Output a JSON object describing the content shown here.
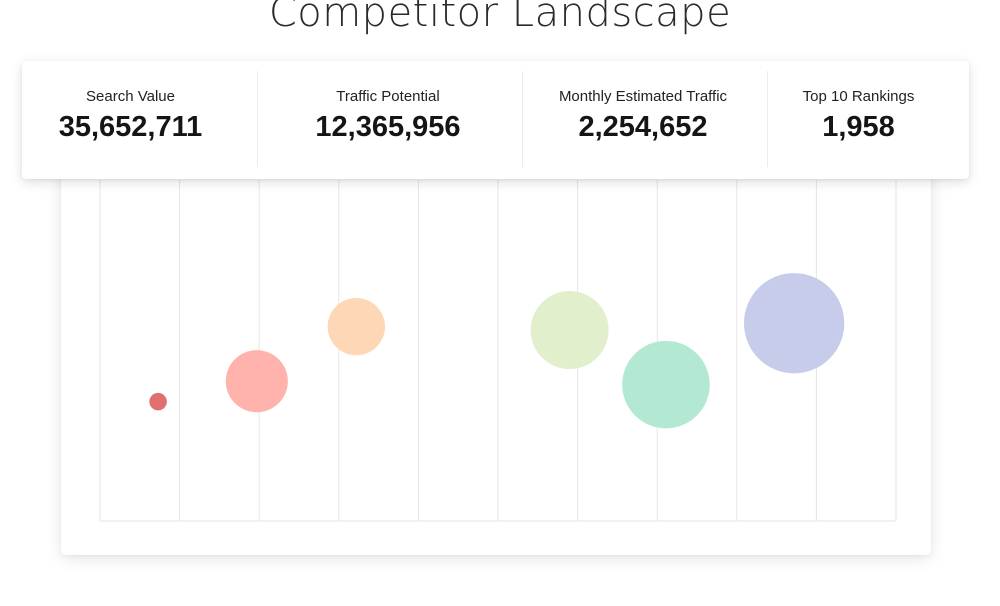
{
  "page": {
    "title": "Competitor Landscape"
  },
  "stats": [
    {
      "label": "Search Value",
      "value": "35,652,711"
    },
    {
      "label": "Traffic Potential",
      "value": "12,365,956"
    },
    {
      "label": "Monthly Estimated Traffic",
      "value": "2,254,652"
    },
    {
      "label": "Top 10 Rankings",
      "value": "1,958"
    }
  ],
  "chart_data": {
    "type": "scatter",
    "grid": true,
    "x_gridlines": 10,
    "title": "",
    "xlabel": "",
    "ylabel": "",
    "xlim": [
      0,
      10
    ],
    "ylim": [
      0,
      10
    ],
    "points": [
      {
        "x": 0.73,
        "y": 3.5,
        "size": 0.11,
        "color": "#e07070"
      },
      {
        "x": 1.97,
        "y": 4.1,
        "size": 0.39,
        "color": "#ffb3ac"
      },
      {
        "x": 3.22,
        "y": 5.7,
        "size": 0.36,
        "color": "#fdd7b6"
      },
      {
        "x": 5.9,
        "y": 5.6,
        "size": 0.49,
        "color": "#e2efcc"
      },
      {
        "x": 7.11,
        "y": 4.0,
        "size": 0.55,
        "color": "#b3e9d2"
      },
      {
        "x": 8.72,
        "y": 5.8,
        "size": 0.63,
        "color": "#c6cce9"
      }
    ]
  }
}
